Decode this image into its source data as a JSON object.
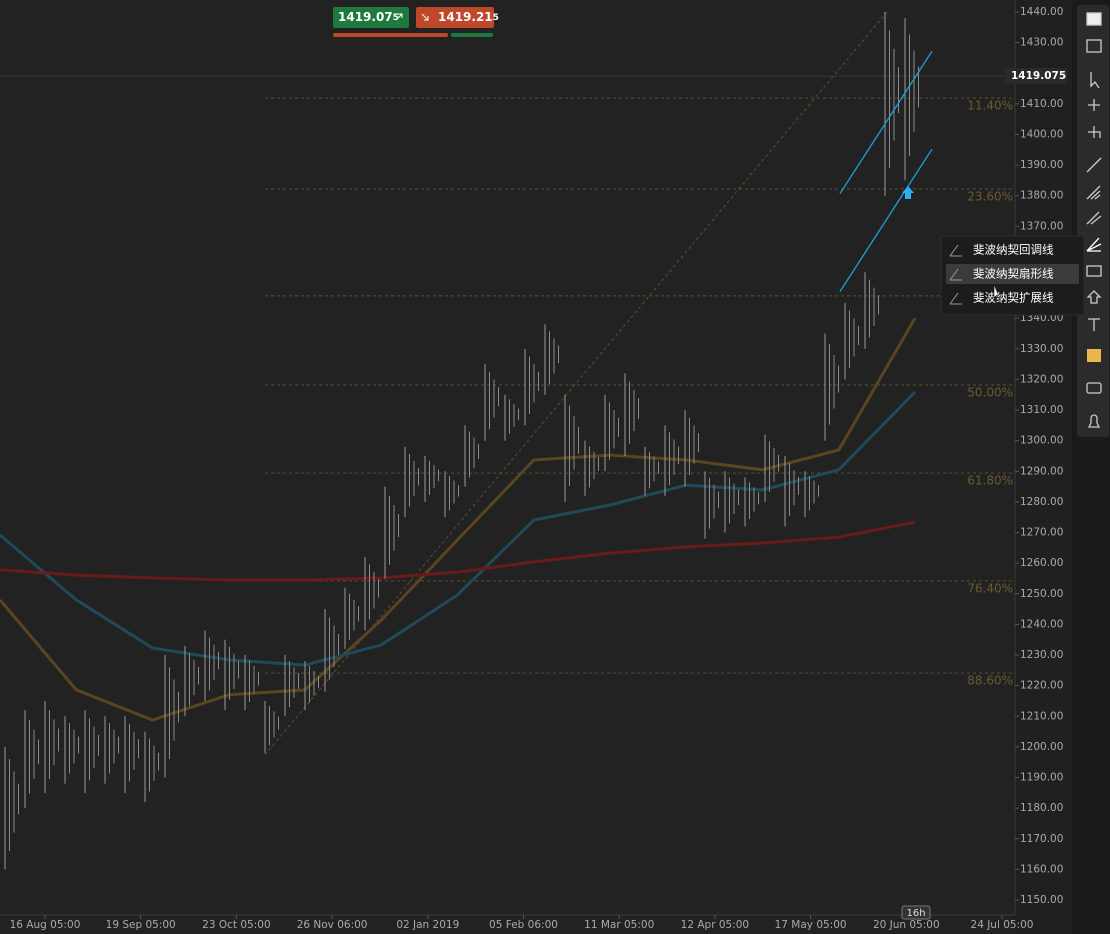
{
  "chart_data": {
    "type": "ohlc",
    "ylim": [
      1150,
      1440
    ],
    "yticks": [
      {
        "value": 1440,
        "label": "1440.00"
      },
      {
        "value": 1430,
        "label": "1430.00"
      },
      {
        "value": 1420,
        "label": "1420.00"
      },
      {
        "value": 1410,
        "label": "1410.00"
      },
      {
        "value": 1400,
        "label": "1400.00"
      },
      {
        "value": 1390,
        "label": "1390.00"
      },
      {
        "value": 1380,
        "label": "1380.00"
      },
      {
        "value": 1370,
        "label": "1370.00"
      },
      {
        "value": 1360,
        "label": "1360.00"
      },
      {
        "value": 1350,
        "label": "1350.00"
      },
      {
        "value": 1340,
        "label": "1340.00"
      },
      {
        "value": 1330,
        "label": "1330.00"
      },
      {
        "value": 1320,
        "label": "1320.00"
      },
      {
        "value": 1310,
        "label": "1310.00"
      },
      {
        "value": 1300,
        "label": "1300.00"
      },
      {
        "value": 1290,
        "label": "1290.00"
      },
      {
        "value": 1280,
        "label": "1280.00"
      },
      {
        "value": 1270,
        "label": "1270.00"
      },
      {
        "value": 1260,
        "label": "1260.00"
      },
      {
        "value": 1250,
        "label": "1250.00"
      },
      {
        "value": 1240,
        "label": "1240.00"
      },
      {
        "value": 1230,
        "label": "1230.00"
      },
      {
        "value": 1220,
        "label": "1220.00"
      },
      {
        "value": 1210,
        "label": "1210.00"
      },
      {
        "value": 1200,
        "label": "1200.00"
      },
      {
        "value": 1190,
        "label": "1190.00"
      },
      {
        "value": 1180,
        "label": "1180.00"
      },
      {
        "value": 1170,
        "label": "1170.00"
      },
      {
        "value": 1160,
        "label": "1160.00"
      },
      {
        "value": 1150,
        "label": "1150.00"
      }
    ],
    "x_labels": [
      "16 Aug 05:00",
      "19 Sep 05:00",
      "23 Oct 05:00",
      "26 Nov 06:00",
      "02 Jan 2019",
      "05 Feb 06:00",
      "11 Mar 05:00",
      "12 Apr 05:00",
      "17 May 05:00",
      "20 Jun 05:00",
      "24 Jul 05:00"
    ],
    "highs": [
      1200,
      1212,
      1215,
      1210,
      1212,
      1210,
      1210,
      1205,
      1230,
      1233,
      1238,
      1235,
      1230,
      1215,
      1230,
      1228,
      1245,
      1252,
      1262,
      1285,
      1298,
      1295,
      1290,
      1305,
      1325,
      1315,
      1330,
      1338,
      1315,
      1300,
      1315,
      1322,
      1298,
      1305,
      1310,
      1290,
      1290,
      1288,
      1302,
      1295,
      1290,
      1335,
      1345,
      1355,
      1440,
      1438
    ],
    "lows": [
      1160,
      1180,
      1185,
      1188,
      1185,
      1188,
      1185,
      1182,
      1190,
      1210,
      1215,
      1212,
      1212,
      1198,
      1210,
      1212,
      1218,
      1232,
      1238,
      1255,
      1275,
      1280,
      1275,
      1285,
      1300,
      1300,
      1305,
      1315,
      1280,
      1282,
      1290,
      1295,
      1282,
      1282,
      1285,
      1268,
      1270,
      1272,
      1280,
      1272,
      1275,
      1300,
      1320,
      1330,
      1380,
      1385
    ],
    "series": [
      {
        "color": "#5a4520",
        "values": [
          1248,
          1218.6,
          1208.8,
          1217,
          1218.6,
          1241.4,
          1267.6,
          1293.7,
          1295.3,
          1293.7,
          1290.5,
          1297,
          1340
        ]
      },
      {
        "color": "#1f4a5a",
        "values": [
          1269.2,
          1248,
          1232.3,
          1228.4,
          1226.7,
          1233.3,
          1249.6,
          1274.1,
          1279,
          1285.5,
          1283.9,
          1290.5,
          1315.9
        ]
      },
      {
        "color": "#6a1a1a",
        "values": [
          1257.8,
          1256.1,
          1255.2,
          1254.5,
          1254.5,
          1255.2,
          1257.1,
          1260.4,
          1263.3,
          1265.3,
          1266.6,
          1268.5,
          1273.4
        ]
      }
    ],
    "fib_levels": [
      {
        "label": "11.40%",
        "price": 1411.9
      },
      {
        "label": "23.60%",
        "price": 1382.2
      },
      {
        "label": null,
        "price": 1347.3
      },
      {
        "label": "50.00%",
        "price": 1318.2
      },
      {
        "label": "61.80%",
        "price": 1289.4
      },
      {
        "label": "76.40%",
        "price": 1254.2
      },
      {
        "label": "88.60%",
        "price": 1224.1
      }
    ],
    "fib_trend": [
      1197.4,
      1440
    ],
    "channel": [
      [
        1380.7,
        1427.2
      ],
      [
        1348.7,
        1395.2
      ]
    ],
    "current_price": {
      "value": 1419.075,
      "label": "1419.075"
    },
    "bid": {
      "main": "1419.07",
      "pip": "5"
    },
    "ask": {
      "main": "1419.21",
      "pip": "5"
    },
    "timeframe_marker": "16h",
    "menu": [
      "斐波纳契回调线",
      "斐波纳契扇形线",
      "斐波纳契扩展线"
    ]
  }
}
